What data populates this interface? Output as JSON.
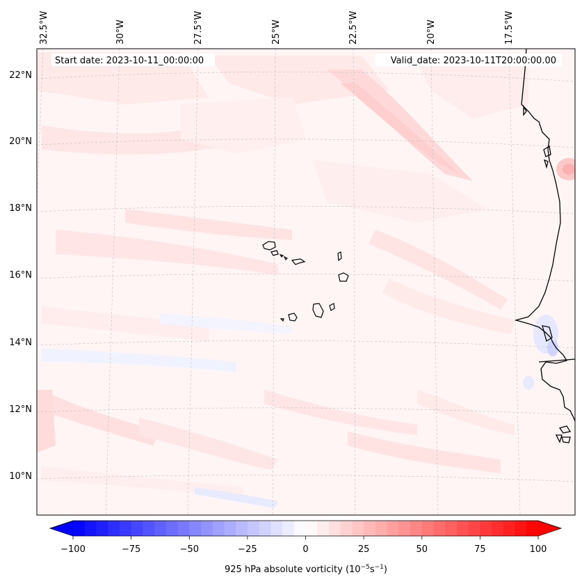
{
  "map": {
    "start_date": "Start date: 2023-10-11_00:00:00",
    "valid_date": "Valid_date: 2023-10-11T20:00:00.00",
    "lon_labels": [
      "32.5°W",
      "30°W",
      "27.5°W",
      "25°W",
      "22.5°W",
      "20°W",
      "17.5°W"
    ],
    "lat_labels": [
      "22°N",
      "20°N",
      "18°N",
      "16°N",
      "14°N",
      "12°N",
      "10°N"
    ]
  },
  "colorbar": {
    "label": "925 hPa absolute vorticity (10",
    "label_exp1": "−5",
    "label_mid": "s",
    "label_exp2": "−1",
    "label_end": ")",
    "tick_labels": [
      "−100",
      "−75",
      "−50",
      "−25",
      "0",
      "25",
      "50",
      "75",
      "100"
    ],
    "vmin": -100,
    "vmax": 100,
    "low_color": "#0000ff",
    "mid_color": "#ffffff",
    "high_color": "#ff0000"
  }
}
